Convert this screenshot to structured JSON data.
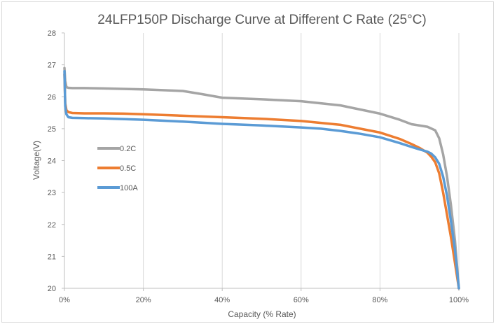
{
  "chart_data": {
    "type": "line",
    "title": "24LFP150P Discharge Curve at Different C Rate (25°C)",
    "xlabel": "Capacity (% Rate)",
    "ylabel": "Voltage(V)",
    "xlim": [
      0,
      100
    ],
    "ylim": [
      20,
      28
    ],
    "x_ticks": [
      "0%",
      "20%",
      "40%",
      "60%",
      "80%",
      "100%"
    ],
    "x_tick_values": [
      0,
      20,
      40,
      60,
      80,
      100
    ],
    "y_ticks": [
      "20",
      "21",
      "22",
      "23",
      "24",
      "25",
      "26",
      "27",
      "28"
    ],
    "y_tick_values": [
      20,
      21,
      22,
      23,
      24,
      25,
      26,
      27,
      28
    ],
    "grid": "vertical",
    "legend_position": "left-middle",
    "series": [
      {
        "name": "0.2C",
        "color": "#a5a5a5",
        "x": [
          0,
          0.2,
          0.5,
          1,
          2,
          5,
          10,
          20,
          30,
          35,
          40,
          50,
          60,
          70,
          80,
          85,
          88,
          92,
          94,
          95,
          96,
          97,
          98,
          99,
          100
        ],
        "y": [
          26.9,
          26.5,
          26.3,
          26.28,
          26.27,
          26.27,
          26.26,
          26.23,
          26.18,
          26.08,
          25.97,
          25.92,
          25.86,
          25.73,
          25.47,
          25.28,
          25.14,
          25.06,
          24.95,
          24.7,
          24.2,
          23.5,
          22.6,
          21.5,
          20
        ]
      },
      {
        "name": "0.5C",
        "color": "#ed7d31",
        "x": [
          0,
          0.2,
          0.5,
          1,
          2,
          5,
          10,
          15,
          20,
          40,
          50,
          60,
          70,
          80,
          85,
          88,
          90,
          92,
          93,
          94,
          95,
          96,
          97,
          98,
          99,
          100
        ],
        "y": [
          26.7,
          25.8,
          25.58,
          25.52,
          25.49,
          25.48,
          25.48,
          25.47,
          25.45,
          25.36,
          25.31,
          25.24,
          25.12,
          24.88,
          24.68,
          24.52,
          24.4,
          24.25,
          24.12,
          23.95,
          23.6,
          23.0,
          22.3,
          21.6,
          20.8,
          20
        ]
      },
      {
        "name": "100A",
        "color": "#5b9bd5",
        "x": [
          0,
          0.2,
          0.5,
          1,
          2,
          5,
          10,
          20,
          30,
          40,
          50,
          60,
          65,
          70,
          75,
          80,
          85,
          88,
          90,
          92,
          93,
          94,
          95,
          96,
          97,
          98,
          99,
          100
        ],
        "y": [
          26.8,
          25.7,
          25.45,
          25.36,
          25.34,
          25.33,
          25.32,
          25.28,
          25.22,
          25.15,
          25.1,
          25.04,
          25.0,
          24.93,
          24.84,
          24.73,
          24.55,
          24.43,
          24.35,
          24.28,
          24.22,
          24.1,
          23.9,
          23.5,
          22.9,
          22.1,
          21.2,
          20
        ]
      }
    ]
  }
}
